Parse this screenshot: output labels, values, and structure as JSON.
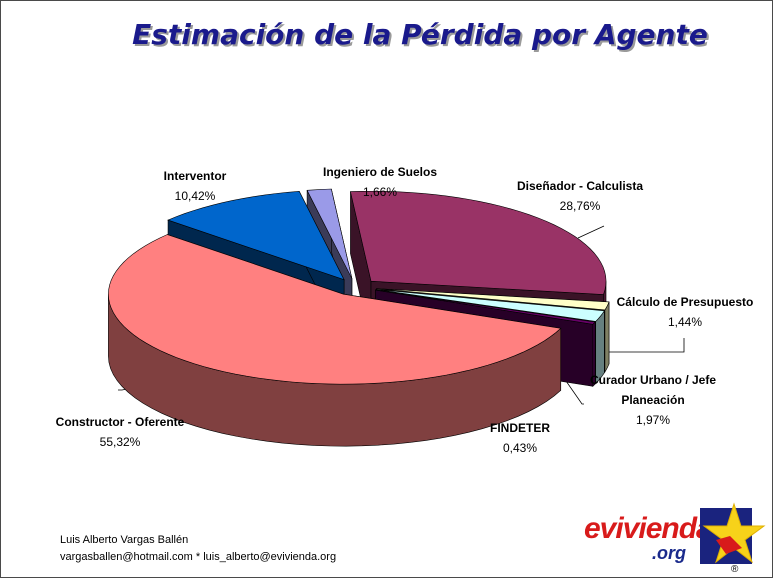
{
  "chart_data": {
    "type": "pie",
    "title": "Estimación de la Pérdida por Agente",
    "slices": [
      {
        "name": "Ingeniero de Suelos",
        "value": 1.66,
        "label": "1,66%",
        "color": "#9a9ae8"
      },
      {
        "name": "Diseñador - Calculista",
        "value": 28.76,
        "label": "28,76%",
        "color": "#993366"
      },
      {
        "name": "Cálculo de Presupuesto",
        "value": 1.44,
        "label": "1,44%",
        "color": "#ffffc8"
      },
      {
        "name": "Curador Urbano / Jefe Planeación",
        "value": 1.97,
        "label": "1,97%",
        "color": "#ccffff"
      },
      {
        "name": "FINDETER",
        "value": 0.43,
        "label": "0,43%",
        "color": "#660066"
      },
      {
        "name": "Constructor - Oferente",
        "value": 55.32,
        "label": "55,32%",
        "color": "#ff8080"
      },
      {
        "name": "Interventor",
        "value": 10.42,
        "label": "10,42%",
        "color": "#0066cc"
      }
    ]
  },
  "labels": {
    "ingeniero": {
      "name": "Ingeniero de Suelos",
      "value": "1,66%"
    },
    "disenador": {
      "name": "Diseñador - Calculista",
      "value": "28,76%"
    },
    "calculo": {
      "name": "Cálculo de Presupuesto",
      "value": "1,44%"
    },
    "curador_line1": "Curador Urbano / Jefe",
    "curador_line2": "Planeación",
    "curador_value": "1,97%",
    "findeter": {
      "name": "FINDETER",
      "value": "0,43%"
    },
    "constructor": {
      "name": "Constructor - Oferente",
      "value": "55,32%"
    },
    "interventor": {
      "name": "Interventor",
      "value": "10,42%"
    }
  },
  "footer": {
    "author": "Luis Alberto Vargas Ballén",
    "emails": "vargasballen@hotmail.com * luis_alberto@evivienda.org"
  },
  "logo": {
    "name": "evivienda",
    "suffix": ".org",
    "registered": "®",
    "icon": "star-logo-icon"
  }
}
